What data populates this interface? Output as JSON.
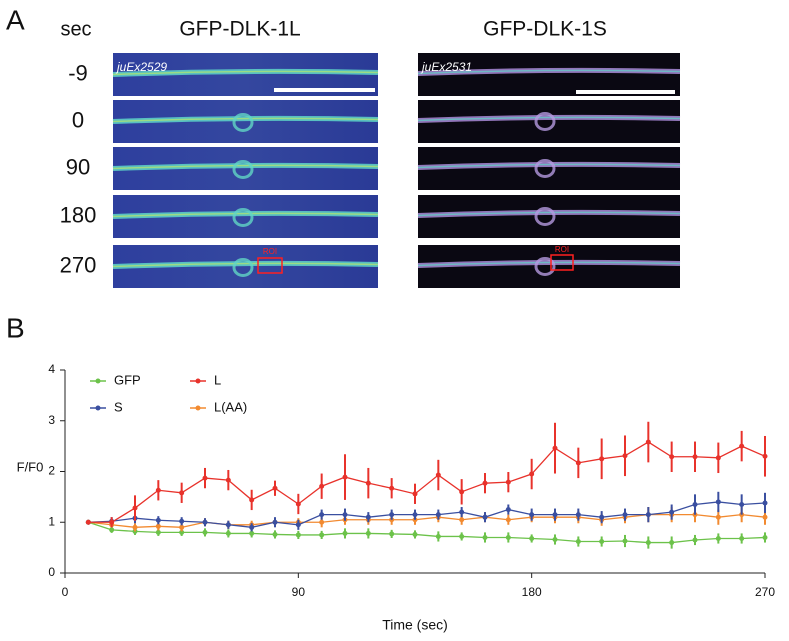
{
  "panel_a": {
    "label": "A",
    "header": "sec",
    "columns": [
      "GFP-DLK-1L",
      "GFP-DLK-1S"
    ],
    "rows": [
      "-9",
      "0",
      "90",
      "180",
      "270"
    ],
    "strains": [
      "juEx2529",
      "juEx2531"
    ],
    "roi_label": "ROI"
  },
  "chart_data": {
    "type": "line",
    "label": "B",
    "ylabel": "F/F0",
    "xlabel": "Time (sec)",
    "x": [
      9,
      18,
      27,
      36,
      45,
      54,
      63,
      72,
      81,
      90,
      99,
      108,
      117,
      126,
      135,
      144,
      153,
      162,
      171,
      180,
      189,
      198,
      207,
      216,
      225,
      234,
      243,
      252,
      261,
      270
    ],
    "series": [
      {
        "name": "GFP",
        "color": "#6cc24a",
        "values": [
          1.0,
          0.85,
          0.82,
          0.8,
          0.8,
          0.8,
          0.78,
          0.78,
          0.76,
          0.75,
          0.75,
          0.78,
          0.78,
          0.77,
          0.76,
          0.72,
          0.72,
          0.7,
          0.7,
          0.68,
          0.66,
          0.62,
          0.62,
          0.63,
          0.6,
          0.6,
          0.65,
          0.68,
          0.68,
          0.7
        ],
        "errors": [
          0.03,
          0.06,
          0.07,
          0.07,
          0.07,
          0.08,
          0.08,
          0.08,
          0.08,
          0.08,
          0.08,
          0.1,
          0.1,
          0.08,
          0.08,
          0.1,
          0.08,
          0.1,
          0.1,
          0.08,
          0.1,
          0.1,
          0.1,
          0.12,
          0.12,
          0.12,
          0.1,
          0.1,
          0.1,
          0.1
        ]
      },
      {
        "name": "L",
        "color": "#e8322b",
        "values": [
          1.0,
          1.0,
          1.28,
          1.63,
          1.58,
          1.87,
          1.83,
          1.44,
          1.67,
          1.36,
          1.71,
          1.89,
          1.77,
          1.67,
          1.56,
          1.93,
          1.6,
          1.77,
          1.79,
          1.95,
          2.46,
          2.17,
          2.25,
          2.31,
          2.58,
          2.29,
          2.29,
          2.27,
          2.5,
          2.3
        ],
        "errors": [
          0.03,
          0.1,
          0.25,
          0.2,
          0.2,
          0.2,
          0.2,
          0.2,
          0.15,
          0.2,
          0.25,
          0.45,
          0.3,
          0.2,
          0.2,
          0.3,
          0.25,
          0.2,
          0.2,
          0.3,
          0.5,
          0.3,
          0.4,
          0.4,
          0.4,
          0.3,
          0.3,
          0.3,
          0.3,
          0.4
        ]
      },
      {
        "name": "S",
        "color": "#3a4fa0",
        "values": [
          1.0,
          1.02,
          1.08,
          1.04,
          1.02,
          1.0,
          0.95,
          0.9,
          1.0,
          0.95,
          1.15,
          1.15,
          1.1,
          1.15,
          1.15,
          1.15,
          1.2,
          1.1,
          1.25,
          1.15,
          1.15,
          1.15,
          1.1,
          1.15,
          1.15,
          1.2,
          1.35,
          1.4,
          1.35,
          1.38
        ],
        "errors": [
          0.03,
          0.08,
          0.1,
          0.08,
          0.08,
          0.08,
          0.08,
          0.08,
          0.1,
          0.1,
          0.1,
          0.12,
          0.1,
          0.1,
          0.1,
          0.1,
          0.1,
          0.1,
          0.1,
          0.12,
          0.12,
          0.12,
          0.12,
          0.12,
          0.15,
          0.15,
          0.2,
          0.2,
          0.2,
          0.2
        ]
      },
      {
        "name": "L(AA)",
        "color": "#f28a30",
        "values": [
          1.0,
          0.95,
          0.9,
          0.92,
          0.9,
          1.0,
          0.95,
          0.95,
          1.0,
          1.0,
          1.0,
          1.05,
          1.05,
          1.05,
          1.05,
          1.1,
          1.05,
          1.1,
          1.05,
          1.1,
          1.1,
          1.1,
          1.05,
          1.1,
          1.15,
          1.15,
          1.15,
          1.1,
          1.15,
          1.1
        ],
        "errors": [
          0.03,
          0.05,
          0.08,
          0.08,
          0.08,
          0.08,
          0.08,
          0.08,
          0.08,
          0.08,
          0.1,
          0.1,
          0.1,
          0.1,
          0.1,
          0.1,
          0.1,
          0.1,
          0.1,
          0.1,
          0.12,
          0.12,
          0.12,
          0.12,
          0.15,
          0.15,
          0.15,
          0.15,
          0.15,
          0.15
        ]
      }
    ],
    "xlim": [
      0,
      270
    ],
    "ylim": [
      0,
      4
    ],
    "xticks": [
      0,
      90,
      180,
      270
    ],
    "yticks": [
      0,
      1,
      2,
      3,
      4
    ],
    "grid": false,
    "legend": "upper left"
  }
}
